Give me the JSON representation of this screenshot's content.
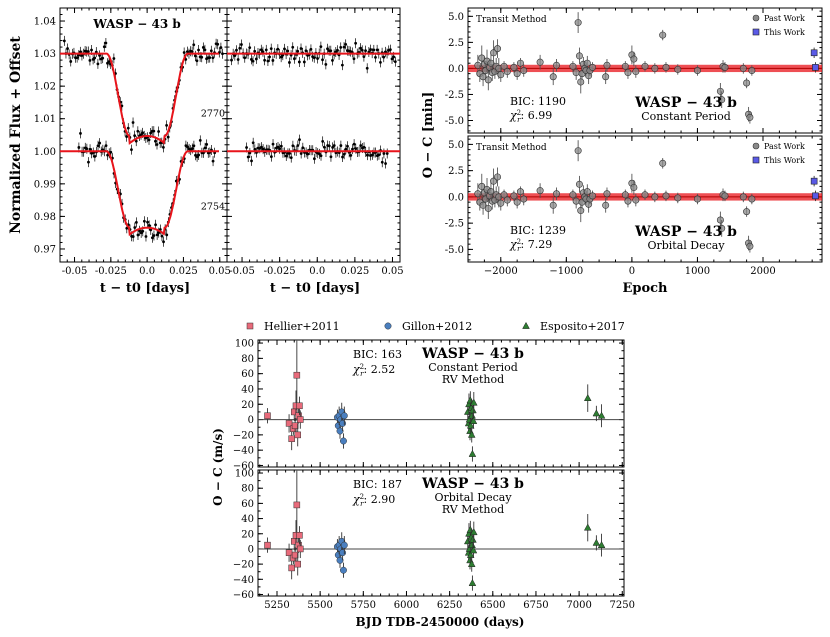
{
  "chart_data": [
    {
      "id": "lc_model",
      "type": "scatter",
      "title": "WASP − 43 b",
      "xlabel": "t − t0 [days]",
      "ylabel": "Normalized Flux + Offset",
      "xlim": [
        -0.06,
        0.055
      ],
      "ylim": [
        0.966,
        1.044
      ],
      "xticks": [
        -0.05,
        -0.025,
        0,
        0.025,
        0.05
      ],
      "xticklabels": [
        "-0.05",
        "-0.025",
        "0.0",
        "0.025",
        "0.05"
      ],
      "yticks": [
        0.97,
        0.98,
        0.99,
        1.0,
        1.01,
        1.02,
        1.03,
        1.04
      ],
      "yticklabels": [
        "0.97",
        "0.98",
        "0.99",
        "1.00",
        "1.01",
        "1.02",
        "1.03",
        "1.04"
      ],
      "series": [
        {
          "name": "2770",
          "baseline": 1.03,
          "depth": 0.0275,
          "ingress": [
            -0.028,
            -0.012
          ],
          "egress": [
            0.012,
            0.027
          ]
        },
        {
          "name": "2754",
          "baseline": 1.0,
          "depth": 0.0255,
          "ingress": [
            -0.028,
            -0.012
          ],
          "egress": [
            0.012,
            0.027
          ]
        }
      ],
      "model_color": "#e8141b"
    },
    {
      "id": "lc_residuals",
      "type": "scatter",
      "xlabel": "t − t0 [days]",
      "xlim": [
        -0.06,
        0.055
      ],
      "ylim": [
        0.966,
        1.044
      ],
      "xticks": [
        -0.05,
        -0.025,
        0,
        0.025,
        0.05
      ],
      "xticklabels": [
        "-0.05",
        "-0.025",
        "0.0",
        "0.025",
        "0.05"
      ],
      "series": [
        {
          "name": "2770",
          "baseline": 1.03
        },
        {
          "name": "2754",
          "baseline": 1.0
        }
      ]
    },
    {
      "id": "ttv_const",
      "type": "scatter",
      "title": "WASP − 43 b",
      "subtitle": "Constant Period",
      "annotation": "Transit Method",
      "bic": "BIC: 1190",
      "chi2": "6.99",
      "ylabel": "O − C [min]",
      "xlim": [
        -2500,
        2900
      ],
      "ylim": [
        -6.2,
        5.8
      ],
      "yticks": [
        -5,
        -2.5,
        0,
        2.5,
        5
      ],
      "yticklabels": [
        "-5.0",
        "-2.5",
        "0.0",
        "2.5",
        "5.0"
      ],
      "legend": [
        "Past Work",
        "This Work"
      ],
      "legend_position": "top-right",
      "past_points": [
        [
          -2350,
          0.3
        ],
        [
          -2320,
          -0.5
        ],
        [
          -2290,
          1.0
        ],
        [
          -2270,
          -0.8
        ],
        [
          -2250,
          0.4
        ],
        [
          -2230,
          -0.2
        ],
        [
          -2210,
          0.7
        ],
        [
          -2190,
          -1.1
        ],
        [
          -2170,
          0.1
        ],
        [
          -2150,
          0.5
        ],
        [
          -2130,
          -0.4
        ],
        [
          -2110,
          1.5
        ],
        [
          -2090,
          -0.3
        ],
        [
          -2070,
          0.2
        ],
        [
          -2050,
          1.9
        ],
        [
          -2030,
          0.0
        ],
        [
          -2000,
          -0.6
        ],
        [
          -1950,
          0.2
        ],
        [
          -1900,
          -0.3
        ],
        [
          -1800,
          0.1
        ],
        [
          -1750,
          -0.5
        ],
        [
          -1700,
          0.5
        ],
        [
          -1650,
          -0.2
        ],
        [
          -1400,
          0.6
        ],
        [
          -1200,
          -0.8
        ],
        [
          -1150,
          0.3
        ],
        [
          -900,
          0.2
        ],
        [
          -850,
          -0.4
        ],
        [
          -820,
          4.4
        ],
        [
          -800,
          1.2
        ],
        [
          -780,
          -1.3
        ],
        [
          -760,
          -0.5
        ],
        [
          -740,
          0.4
        ],
        [
          -720,
          0.0
        ],
        [
          -700,
          -0.2
        ],
        [
          -680,
          0.5
        ],
        [
          -660,
          -0.7
        ],
        [
          -640,
          -0.2
        ],
        [
          -600,
          0.1
        ],
        [
          -400,
          -0.8
        ],
        [
          -380,
          0.3
        ],
        [
          -100,
          0.2
        ],
        [
          -60,
          -0.4
        ],
        [
          0,
          1.3
        ],
        [
          30,
          0.9
        ],
        [
          60,
          -0.3
        ],
        [
          200,
          0.2
        ],
        [
          350,
          0.0
        ],
        [
          470,
          3.2
        ],
        [
          520,
          0.1
        ],
        [
          700,
          -0.1
        ],
        [
          1000,
          -0.2
        ],
        [
          1350,
          -2.2
        ],
        [
          1370,
          -3.0
        ],
        [
          1390,
          0.2
        ],
        [
          1420,
          0.1
        ],
        [
          1700,
          0.0
        ],
        [
          1750,
          -1.4
        ],
        [
          1780,
          -4.4
        ],
        [
          1800,
          -4.7
        ],
        [
          1830,
          -0.2
        ]
      ],
      "past_errors": [
        1.0,
        0.8,
        1.2,
        0.9,
        0.7,
        0.8,
        1.1,
        1.0,
        0.6,
        0.9,
        0.8,
        1.2,
        0.7,
        0.8,
        0.9,
        1.0,
        0.7,
        0.5,
        0.6,
        0.5,
        0.6,
        0.5,
        0.6,
        0.7,
        0.8,
        0.6,
        0.5,
        0.7,
        1.0,
        0.8,
        1.1,
        0.6,
        0.7,
        0.5,
        0.6,
        0.7,
        0.8,
        0.5,
        0.5,
        0.7,
        0.6,
        0.5,
        0.6,
        0.9,
        0.7,
        0.6,
        0.5,
        0.5,
        0.5,
        0.5,
        0.5,
        0.5,
        0.8,
        0.8,
        0.6,
        0.5,
        0.5,
        0.5,
        0.7,
        0.6,
        0.5
      ],
      "this_points": [
        [
          2780,
          1.5
        ],
        [
          2800,
          0.1
        ]
      ],
      "this_errors": [
        0.5,
        0.5
      ],
      "band_color": "#e8141b"
    },
    {
      "id": "ttv_decay",
      "type": "scatter",
      "title": "WASP − 43 b",
      "subtitle": "Orbital Decay",
      "annotation": "Transit Method",
      "bic": "BIC: 1239",
      "chi2": "7.29",
      "xlabel": "Epoch",
      "ylabel": "O − C [min]",
      "xlim": [
        -2500,
        2900
      ],
      "ylim": [
        -6.2,
        5.8
      ],
      "xticks": [
        -2000,
        -1000,
        0,
        1000,
        2000
      ],
      "xticklabels": [
        "−2000",
        "−1000",
        "0",
        "1000",
        "2000"
      ],
      "yticks": [
        -5,
        -2.5,
        0,
        2.5,
        5
      ],
      "yticklabels": [
        "-5.0",
        "-2.5",
        "0.0",
        "2.5",
        "5.0"
      ],
      "legend": [
        "Past Work",
        "This Work"
      ],
      "legend_position": "top-right"
    },
    {
      "id": "rv_const",
      "type": "scatter",
      "title": "WASP − 43 b",
      "subtitle": "Constant Period",
      "subtitle2": "RV Method",
      "bic": "BIC: 163",
      "chi2": "2.52",
      "ylabel": "O − C (m/s)",
      "xlim": [
        5140,
        7260
      ],
      "ylim": [
        -62,
        104
      ],
      "yticks": [
        -60,
        -40,
        -20,
        0,
        20,
        40,
        60,
        80,
        100
      ],
      "yticklabels": [
        "−60",
        "−40",
        "−20",
        "0",
        "20",
        "40",
        "60",
        "80",
        "100"
      ],
      "legend": [
        "Hellier+2011",
        "Gillon+2012",
        "Esposito+2017"
      ],
      "legend_position": "top-center",
      "hellier": [
        [
          5195,
          5,
          10
        ],
        [
          5320,
          -5,
          12
        ],
        [
          5335,
          -25,
          15
        ],
        [
          5345,
          -12,
          8
        ],
        [
          5350,
          10,
          12
        ],
        [
          5355,
          -8,
          10
        ],
        [
          5360,
          18,
          20
        ],
        [
          5365,
          58,
          45
        ],
        [
          5370,
          -20,
          15
        ],
        [
          5375,
          5,
          10
        ],
        [
          5380,
          18,
          12
        ],
        [
          5385,
          0,
          12
        ]
      ],
      "gillon": [
        [
          5600,
          3,
          10
        ],
        [
          5605,
          -8,
          8
        ],
        [
          5610,
          5,
          12
        ],
        [
          5615,
          -15,
          10
        ],
        [
          5620,
          0,
          8
        ],
        [
          5625,
          10,
          12
        ],
        [
          5630,
          -5,
          10
        ],
        [
          5635,
          -28,
          10
        ],
        [
          5640,
          5,
          12
        ]
      ],
      "esposito": [
        [
          6355,
          10,
          12
        ],
        [
          6360,
          -5,
          10
        ],
        [
          6362,
          20,
          14
        ],
        [
          6365,
          0,
          10
        ],
        [
          6368,
          -15,
          12
        ],
        [
          6370,
          25,
          12
        ],
        [
          6372,
          -8,
          10
        ],
        [
          6375,
          15,
          12
        ],
        [
          6378,
          -20,
          10
        ],
        [
          6380,
          5,
          10
        ],
        [
          6382,
          -45,
          10
        ],
        [
          6385,
          12,
          10
        ],
        [
          6388,
          -2,
          10
        ],
        [
          6390,
          22,
          14
        ],
        [
          7050,
          28,
          18
        ],
        [
          7100,
          8,
          10
        ],
        [
          7130,
          5,
          15
        ]
      ],
      "colors": {
        "hellier": "#e86a7a",
        "gillon": "#4a7fbf",
        "esposito": "#2e7d32"
      }
    },
    {
      "id": "rv_decay",
      "type": "scatter",
      "title": "WASP − 43 b",
      "subtitle": "Orbital Decay",
      "subtitle2": "RV Method",
      "bic": "BIC: 187",
      "chi2": "2.90",
      "xlabel": "BJD_TDB-2450000 (days)",
      "ylabel": "O − C (m/s)",
      "xlim": [
        5140,
        7260
      ],
      "ylim": [
        -62,
        104
      ],
      "xticks": [
        5250,
        5500,
        5750,
        6000,
        6250,
        6500,
        6750,
        7000,
        7250
      ],
      "xticklabels": [
        "5250",
        "5500",
        "5750",
        "6000",
        "6250",
        "6500",
        "6750",
        "7000",
        "7250"
      ],
      "yticks": [
        -60,
        -40,
        -20,
        0,
        20,
        40,
        60,
        80,
        100
      ],
      "yticklabels": [
        "−60",
        "−40",
        "−20",
        "0",
        "20",
        "40",
        "60",
        "80",
        "100"
      ]
    }
  ]
}
